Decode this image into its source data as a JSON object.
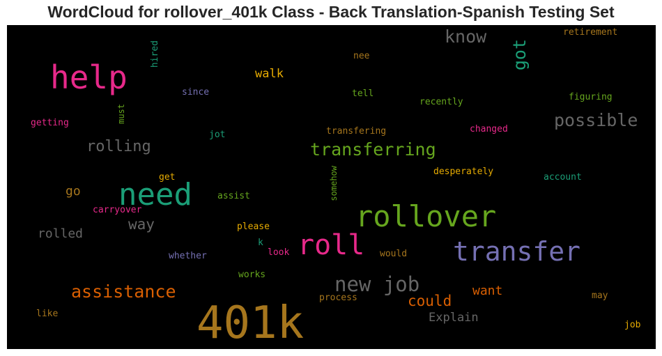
{
  "title": "WordCloud for rollover_401k Class - Back Translation-Spanish Testing Set",
  "words": [
    {
      "text": "401k",
      "color": "#a6761d"
    },
    {
      "text": "help",
      "color": "#e7298a"
    },
    {
      "text": "need",
      "color": "#1b9e77"
    },
    {
      "text": "rollover",
      "color": "#66a61e"
    },
    {
      "text": "roll",
      "color": "#e7298a"
    },
    {
      "text": "transfer",
      "color": "#7570b3"
    },
    {
      "text": "new job",
      "color": "#666666"
    },
    {
      "text": "assistance",
      "color": "#d95f02"
    },
    {
      "text": "transferring",
      "color": "#66a61e"
    },
    {
      "text": "possible",
      "color": "#666666"
    },
    {
      "text": "know",
      "color": "#666666"
    },
    {
      "text": "got",
      "color": "#1b9e77"
    },
    {
      "text": "rolling",
      "color": "#666666"
    },
    {
      "text": "could",
      "color": "#d95f02"
    },
    {
      "text": "way",
      "color": "#666666"
    },
    {
      "text": "want",
      "color": "#d95f02"
    },
    {
      "text": "rolled",
      "color": "#666666"
    },
    {
      "text": "Explain",
      "color": "#666666"
    },
    {
      "text": "go",
      "color": "#a6761d"
    },
    {
      "text": "walk",
      "color": "#e6ab02"
    },
    {
      "text": "retirement",
      "color": "#a6761d"
    },
    {
      "text": "hired",
      "color": "#1b9e77"
    },
    {
      "text": "nee",
      "color": "#a6761d"
    },
    {
      "text": "since",
      "color": "#7570b3"
    },
    {
      "text": "tell",
      "color": "#66a61e"
    },
    {
      "text": "recently",
      "color": "#66a61e"
    },
    {
      "text": "figuring",
      "color": "#66a61e"
    },
    {
      "text": "getting",
      "color": "#e7298a"
    },
    {
      "text": "must",
      "color": "#66a61e"
    },
    {
      "text": "jot",
      "color": "#1b9e77"
    },
    {
      "text": "transfering",
      "color": "#a6761d"
    },
    {
      "text": "changed",
      "color": "#e7298a"
    },
    {
      "text": "get",
      "color": "#e6ab02"
    },
    {
      "text": "somehow",
      "color": "#66a61e"
    },
    {
      "text": "desperately",
      "color": "#e6ab02"
    },
    {
      "text": "account",
      "color": "#1b9e77"
    },
    {
      "text": "assist",
      "color": "#66a61e"
    },
    {
      "text": "carryover",
      "color": "#e7298a"
    },
    {
      "text": "please",
      "color": "#e6ab02"
    },
    {
      "text": "k",
      "color": "#1b9e77"
    },
    {
      "text": "look",
      "color": "#e7298a"
    },
    {
      "text": "would",
      "color": "#a6761d"
    },
    {
      "text": "whether",
      "color": "#7570b3"
    },
    {
      "text": "works",
      "color": "#66a61e"
    },
    {
      "text": "process",
      "color": "#a6761d"
    },
    {
      "text": "may",
      "color": "#a6761d"
    },
    {
      "text": "like",
      "color": "#a6761d"
    },
    {
      "text": "job",
      "color": "#e6ab02"
    }
  ]
}
